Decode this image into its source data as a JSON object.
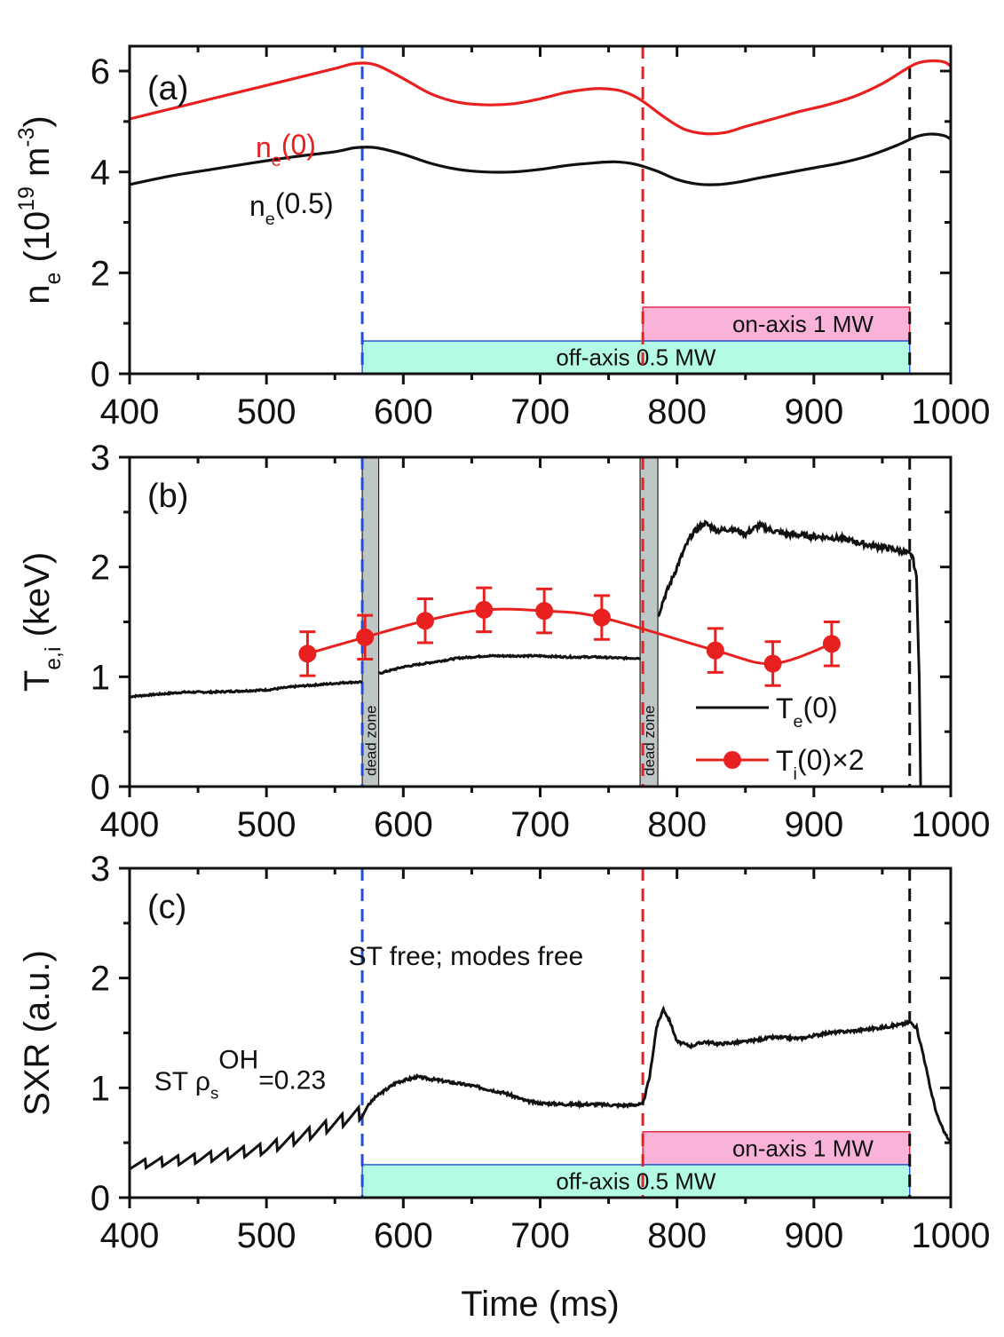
{
  "colors": {
    "red": "#e8201f",
    "black": "#111111",
    "blue": "#1f4fe0",
    "on_axis_fill": "#f9b3d9",
    "on_axis_edge": "#e0304a",
    "off_axis_fill": "#b4fbe6",
    "off_axis_edge": "#2a5bd8",
    "dead_zone_fill": "#bfc6c6"
  },
  "chart_data": [
    {
      "id": "a",
      "type": "line",
      "panel_label": "(a)",
      "ylabel": "n_e (10^19 m^-3)",
      "ylabel_parts": {
        "main": "n",
        "sub": "e",
        "rest": " (10",
        "sup": "19",
        "rest2": " m",
        "sup2": "-3",
        "end": ")"
      },
      "xlim": [
        400,
        1000
      ],
      "ylim": [
        0,
        6.5
      ],
      "xticks": [
        400,
        500,
        600,
        700,
        800,
        900,
        1000
      ],
      "yticks": [
        0,
        2,
        4,
        6
      ],
      "series": [
        {
          "name": "n_e(0)",
          "label_main": "n",
          "label_sub": "e",
          "label_rest": "(0)",
          "color": "red",
          "x": [
            400,
            430,
            460,
            490,
            520,
            550,
            565,
            580,
            600,
            620,
            640,
            660,
            680,
            700,
            720,
            740,
            755,
            765,
            775,
            790,
            805,
            820,
            835,
            850,
            870,
            890,
            910,
            930,
            950,
            965,
            975,
            985,
            995,
            1000
          ],
          "y": [
            5.05,
            5.25,
            5.45,
            5.65,
            5.85,
            6.05,
            6.15,
            6.12,
            5.85,
            5.55,
            5.38,
            5.33,
            5.35,
            5.45,
            5.58,
            5.65,
            5.63,
            5.55,
            5.4,
            5.1,
            4.85,
            4.76,
            4.78,
            4.9,
            5.05,
            5.2,
            5.33,
            5.5,
            5.75,
            6.0,
            6.15,
            6.2,
            6.18,
            6.1
          ]
        },
        {
          "name": "n_e(0.5)",
          "label_main": "n",
          "label_sub": "e",
          "label_rest": "(0.5)",
          "color": "black",
          "x": [
            400,
            430,
            460,
            490,
            520,
            550,
            565,
            580,
            600,
            620,
            640,
            660,
            680,
            700,
            720,
            740,
            755,
            770,
            785,
            800,
            815,
            830,
            845,
            860,
            880,
            900,
            920,
            940,
            960,
            975,
            985,
            995,
            1000
          ],
          "y": [
            3.75,
            3.92,
            4.05,
            4.18,
            4.3,
            4.4,
            4.48,
            4.48,
            4.35,
            4.17,
            4.05,
            4.0,
            4.0,
            4.05,
            4.13,
            4.18,
            4.2,
            4.15,
            4.02,
            3.85,
            3.76,
            3.75,
            3.8,
            3.88,
            3.98,
            4.08,
            4.18,
            4.32,
            4.52,
            4.7,
            4.75,
            4.72,
            4.65
          ]
        }
      ],
      "vlines": [
        {
          "x": 570,
          "color": "blue",
          "style": "dashed"
        },
        {
          "x": 775,
          "color": "red",
          "style": "dashed"
        },
        {
          "x": 970,
          "color": "black",
          "style": "dashed"
        }
      ],
      "bands": [
        {
          "label": "on-axis 1 MW",
          "x0": 775,
          "x1": 970,
          "y0": 0.65,
          "y1": 1.32,
          "kind": "on_axis"
        },
        {
          "label": "off-axis 0.5 MW",
          "x0": 570,
          "x1": 970,
          "y0": 0.0,
          "y1": 0.65,
          "kind": "off_axis"
        }
      ]
    },
    {
      "id": "b",
      "type": "line",
      "panel_label": "(b)",
      "ylabel": "T_e,i (keV)",
      "ylabel_parts": {
        "main": "T",
        "sub": "e,i",
        "rest": " (keV)"
      },
      "xlim": [
        400,
        1000
      ],
      "ylim": [
        0,
        3
      ],
      "xticks": [
        400,
        500,
        600,
        700,
        800,
        900,
        1000
      ],
      "yticks": [
        0,
        1,
        2,
        3
      ],
      "series": [
        {
          "name": "T_e(0)",
          "color": "black",
          "segments": [
            {
              "x": [
                400,
                420,
                440,
                460,
                480,
                500,
                520,
                540,
                560,
                570
              ],
              "y": [
                0.82,
                0.84,
                0.86,
                0.86,
                0.87,
                0.88,
                0.91,
                0.93,
                0.95,
                0.95
              ]
            },
            {
              "x": [
                582,
                600,
                620,
                640,
                660,
                680,
                700,
                720,
                740,
                760,
                773
              ],
              "y": [
                1.03,
                1.09,
                1.13,
                1.17,
                1.19,
                1.19,
                1.19,
                1.18,
                1.18,
                1.17,
                1.17
              ]
            },
            {
              "x": [
                786,
                790,
                795,
                800,
                805,
                810,
                815,
                820,
                830,
                840,
                850,
                860,
                870,
                880,
                900,
                920,
                940,
                955,
                965,
                972,
                975,
                977,
                978
              ],
              "y": [
                1.55,
                1.7,
                1.85,
                2.0,
                2.15,
                2.28,
                2.35,
                2.4,
                2.33,
                2.35,
                2.3,
                2.38,
                2.33,
                2.3,
                2.28,
                2.26,
                2.2,
                2.17,
                2.14,
                2.1,
                1.9,
                1.0,
                0.0
              ]
            }
          ]
        },
        {
          "name": "T_i(0)×2",
          "color": "red",
          "points": [
            {
              "x": 530,
              "y": 1.21,
              "err": 0.2
            },
            {
              "x": 572,
              "y": 1.36,
              "err": 0.2
            },
            {
              "x": 616,
              "y": 1.51,
              "err": 0.2
            },
            {
              "x": 659,
              "y": 1.61,
              "err": 0.2
            },
            {
              "x": 703,
              "y": 1.6,
              "err": 0.2
            },
            {
              "x": 745,
              "y": 1.54,
              "err": 0.2
            },
            {
              "x": 828,
              "y": 1.24,
              "err": 0.2
            },
            {
              "x": 870,
              "y": 1.12,
              "err": 0.2
            },
            {
              "x": 913,
              "y": 1.3,
              "err": 0.2
            }
          ]
        }
      ],
      "legend": {
        "position": "bottom-right",
        "entries": [
          {
            "main": "T",
            "sub": "e",
            "rest": "(0)",
            "color": "black",
            "marker": false
          },
          {
            "main": "T",
            "sub": "i",
            "rest": "(0)×2",
            "color": "red",
            "marker": true
          }
        ]
      },
      "vlines": [
        {
          "x": 570,
          "color": "blue",
          "style": "dashed"
        },
        {
          "x": 775,
          "color": "red",
          "style": "dashed"
        },
        {
          "x": 970,
          "color": "black",
          "style": "dashed"
        }
      ],
      "dead_zones": [
        {
          "x0": 570,
          "x1": 582,
          "label": "dead zone"
        },
        {
          "x0": 773,
          "x1": 786,
          "label": "dead zone"
        }
      ]
    },
    {
      "id": "c",
      "type": "line",
      "panel_label": "(c)",
      "ylabel": "SXR (a.u.)",
      "xlabel": "Time (ms)",
      "xlim": [
        400,
        1000
      ],
      "ylim": [
        0,
        3
      ],
      "xticks": [
        400,
        500,
        600,
        700,
        800,
        900,
        1000
      ],
      "yticks": [
        0,
        1,
        2,
        3
      ],
      "series": [
        {
          "name": "SXR",
          "color": "black",
          "base_x": [
            400,
            450,
            500,
            530,
            550,
            570,
            580,
            595,
            610,
            625,
            650,
            675,
            690,
            700,
            720,
            740,
            760,
            775,
            780,
            785,
            790,
            795,
            800,
            810,
            820,
            830,
            850,
            870,
            890,
            910,
            930,
            950,
            965,
            970,
            975,
            980,
            985,
            990,
            995,
            1000
          ],
          "base_y": [
            0.3,
            0.36,
            0.45,
            0.58,
            0.68,
            0.78,
            0.92,
            1.05,
            1.1,
            1.07,
            1.02,
            0.95,
            0.88,
            0.86,
            0.85,
            0.85,
            0.84,
            0.85,
            1.1,
            1.55,
            1.72,
            1.6,
            1.42,
            1.38,
            1.42,
            1.4,
            1.42,
            1.46,
            1.45,
            1.5,
            1.52,
            1.55,
            1.58,
            1.6,
            1.55,
            1.3,
            1.0,
            0.75,
            0.6,
            0.5
          ],
          "sawtooth_until": 575,
          "sawtooth_period_ms": 12
        }
      ],
      "annotations": [
        {
          "text_main": "ST ρ",
          "sub": "s",
          "sup": "OH",
          "rest": "=0.23",
          "x": 418,
          "y": 0.98
        },
        {
          "text": "ST free; modes free",
          "x": 560,
          "y": 2.12
        }
      ],
      "vlines": [
        {
          "x": 570,
          "color": "blue",
          "style": "dashed"
        },
        {
          "x": 775,
          "color": "red",
          "style": "dashed"
        },
        {
          "x": 970,
          "color": "black",
          "style": "dashed"
        }
      ],
      "bands": [
        {
          "label": "on-axis 1 MW",
          "x0": 775,
          "x1": 970,
          "y0": 0.3,
          "y1": 0.6,
          "kind": "on_axis"
        },
        {
          "label": "off-axis 0.5 MW",
          "x0": 570,
          "x1": 970,
          "y0": 0.0,
          "y1": 0.3,
          "kind": "off_axis"
        }
      ]
    }
  ]
}
